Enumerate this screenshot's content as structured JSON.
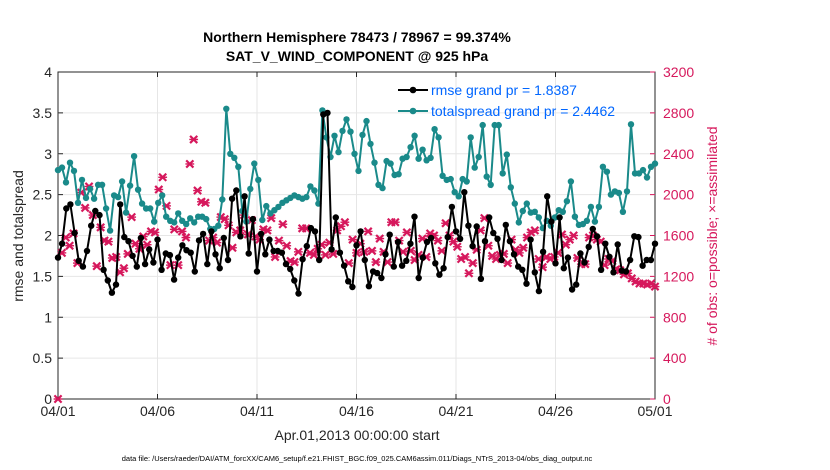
{
  "chart_data": {
    "type": "line",
    "title_line1": "Northern Hemisphere 78473 / 78967 = 99.374%",
    "title_line2": "SAT_V_WIND_COMPONENT @ 925 hPa",
    "ylabel_left": "rmse and totalspread",
    "ylabel_right": "# of obs: o=possible; ×=assimilated",
    "xlabel": "Apr.01,2013 00:00:00 start",
    "footnote": "data file: /Users/raeder/DAI/ATM_forcXX/CAM6_setup/f.e21.FHIST_BGC.f09_025.CAM6assim.011/Diags_NTrS_2013-04/obs_diag_output.nc",
    "xlim": [
      0,
      30
    ],
    "ylim_left": [
      0,
      4
    ],
    "ylim_right": [
      0,
      3200
    ],
    "x_ticks": [
      {
        "x": 0,
        "label": "04/01"
      },
      {
        "x": 5,
        "label": "04/06"
      },
      {
        "x": 10,
        "label": "04/11"
      },
      {
        "x": 15,
        "label": "04/16"
      },
      {
        "x": 20,
        "label": "04/21"
      },
      {
        "x": 25,
        "label": "04/26"
      },
      {
        "x": 30,
        "label": "05/01"
      }
    ],
    "y_ticks_left": [
      "0",
      "0.5",
      "1",
      "1.5",
      "2",
      "2.5",
      "3",
      "3.5",
      "4"
    ],
    "y_ticks_right": [
      "0",
      "400",
      "800",
      "1200",
      "1600",
      "2000",
      "2400",
      "2800",
      "3200"
    ],
    "colors": {
      "rmse": "#000000",
      "spread": "#1a8a8a",
      "obs": "#d6185c",
      "legend_text": "#0066ff",
      "axis": "#262626"
    },
    "series": [
      {
        "name": "rmse grand pr = 1.8387",
        "axis": "left",
        "values": [
          1.73,
          1.9,
          2.33,
          2.38,
          2.03,
          1.69,
          1.62,
          1.81,
          2.12,
          2.3,
          2.25,
          1.58,
          1.45,
          1.3,
          1.4,
          2.38,
          1.98,
          1.93,
          1.75,
          1.62,
          1.97,
          1.65,
          1.83,
          1.67,
          1.95,
          1.58,
          1.78,
          1.76,
          1.46,
          1.73,
          1.88,
          1.82,
          1.79,
          1.56,
          1.94,
          2.02,
          1.65,
          2.05,
          1.77,
          1.6,
          1.97,
          1.7,
          2.45,
          2.55,
          1.99,
          2.48,
          1.78,
          2.2,
          1.56,
          2.02,
          1.77,
          1.95,
          1.81,
          1.81,
          1.79,
          1.65,
          1.59,
          1.45,
          1.29,
          1.71,
          1.87,
          2.09,
          2.05,
          1.7,
          3.48,
          3.5,
          1.83,
          2.22,
          1.79,
          1.63,
          1.44,
          1.37,
          1.88,
          2.05,
          1.7,
          1.38,
          1.56,
          1.54,
          1.48,
          1.77,
          2.01,
          1.62,
          1.92,
          1.63,
          1.69,
          1.9,
          2.23,
          1.48,
          1.73,
          1.92,
          1.97,
          1.66,
          1.52,
          1.6,
          1.98,
          2.35,
          2.05,
          1.96,
          2.53,
          2.12,
          1.87,
          2.11,
          1.47,
          1.93,
          2.22,
          2.03,
          1.96,
          1.7,
          2.13,
          1.93,
          1.77,
          1.62,
          1.58,
          1.41,
          1.95,
          1.55,
          1.32,
          1.8,
          2.48,
          2.17,
          1.66,
          2.22,
          1.6,
          1.73,
          1.34,
          1.4,
          1.78,
          1.67,
          1.86,
          2.08,
          1.99,
          1.58,
          1.9,
          1.74,
          1.55,
          1.89,
          1.57,
          1.56,
          1.7,
          1.99,
          1.98,
          1.63,
          1.7,
          1.7,
          1.9
        ]
      },
      {
        "name": "totalspread grand pr = 2.4462",
        "axis": "left",
        "values": [
          2.8,
          2.83,
          2.65,
          2.89,
          2.79,
          2.4,
          2.68,
          2.46,
          2.57,
          2.45,
          2.62,
          2.62,
          2.33,
          2.06,
          2.49,
          2.47,
          2.66,
          2.28,
          2.61,
          2.97,
          2.56,
          2.39,
          2.33,
          2.33,
          2.17,
          2.4,
          2.49,
          2.23,
          2.18,
          2.16,
          2.27,
          2.18,
          2.14,
          2.21,
          2.16,
          2.23,
          2.23,
          2.2,
          2.08,
          2.08,
          2.12,
          2.44,
          3.55,
          3.0,
          2.95,
          2.84,
          2.3,
          2.17,
          2.57,
          2.88,
          2.68,
          2.19,
          2.36,
          2.27,
          2.31,
          2.35,
          2.4,
          2.43,
          2.46,
          2.49,
          2.47,
          2.45,
          2.47,
          2.6,
          2.55,
          2.39,
          3.53,
          3.2,
          2.96,
          3.22,
          3.02,
          3.28,
          3.42,
          3.27,
          3.0,
          2.79,
          3.23,
          3.4,
          3.12,
          2.89,
          2.62,
          2.58,
          2.91,
          2.88,
          2.74,
          2.75,
          2.94,
          2.96,
          3.08,
          3.22,
          2.94,
          3.05,
          2.92,
          2.95,
          3.3,
          3.2,
          2.73,
          2.68,
          2.69,
          2.53,
          2.48,
          2.69,
          2.66,
          3.2,
          2.83,
          2.96,
          3.35,
          2.72,
          2.62,
          3.35,
          3.35,
          2.76,
          2.99,
          2.59,
          2.39,
          2.16,
          2.3,
          2.39,
          2.28,
          2.29,
          2.22,
          2.09,
          2.18,
          2.12,
          2.22,
          2.31,
          2.29,
          2.42,
          2.66,
          2.23,
          2.13,
          2.14,
          2.18,
          2.35,
          2.17,
          2.35,
          2.84,
          2.78,
          2.5,
          2.54,
          2.52,
          2.29,
          2.54,
          3.36,
          2.76,
          2.76,
          2.8,
          2.71,
          2.84,
          2.88
        ]
      },
      {
        "name": "assimilated",
        "axis": "right",
        "values": [
          0,
          1430,
          1580,
          1500,
          1620,
          1330,
          2020,
          1870,
          2080,
          1800,
          1300,
          1680,
          1550,
          1540,
          1380,
          1390,
          1240,
          1280,
          1420,
          1780,
          1520,
          1470,
          1590,
          1510,
          1640,
          1630,
          2050,
          2170,
          1890,
          1310,
          1660,
          1310,
          1640,
          1580,
          2300,
          2540,
          2040,
          1930,
          1920,
          1550,
          1580,
          1530,
          1780,
          1760,
          1700,
          1480,
          1630,
          1650,
          1800,
          1610,
          1750,
          1590,
          1560,
          1660,
          1650,
          1770,
          1390,
          1550,
          1710,
          1500,
          1350,
          1340,
          1440,
          1670,
          1670,
          1430,
          1410,
          1470,
          1510,
          1410,
          1530,
          1420,
          1650,
          1690,
          1730,
          1330,
          1560,
          1430,
          1520,
          1440,
          1640,
          1450,
          1340,
          1570,
          1440,
          1340,
          1730,
          1730,
          1550,
          1440,
          1630,
          1450,
          1360,
          1410,
          1570,
          1390,
          1620,
          1600,
          1550,
          1450,
          1720,
          1600,
          1540,
          1490,
          1370,
          1390,
          1230,
          1330,
          1460,
          1650,
          1770,
          1500,
          1400,
          1370,
          1410,
          1420,
          1330,
          1560,
          1460,
          1430,
          1480,
          1580,
          1630,
          1650,
          1370,
          1290,
          1390,
          1370,
          1390,
          1430,
          1610,
          1510,
          1560,
          1600,
          1380,
          1320,
          1320,
          1580,
          1600,
          1560,
          1540,
          1310,
          1370,
          1350,
          1270,
          1260,
          1220,
          1230,
          1180,
          1150,
          1130,
          1130,
          1120,
          1130,
          1100
        ]
      }
    ]
  }
}
